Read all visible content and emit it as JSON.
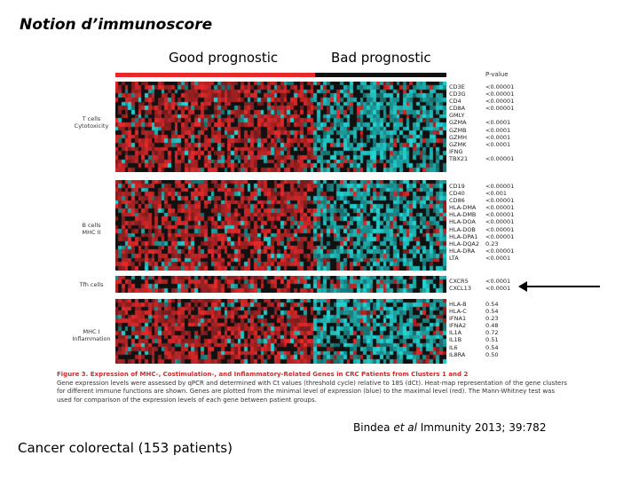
{
  "slide": {
    "title": "Notion d’immunoscore",
    "header_good": "Good prognostic",
    "header_bad": "Bad prognostic",
    "pvalue_header": "P-value",
    "citation_pre": "Bindea ",
    "citation_em": "et al",
    "citation_post": " Immunity 2013; 39:782",
    "bottom_text": "Cancer colorectal (153 patients)"
  },
  "heatmap": {
    "colors": {
      "red": "#e8292b",
      "cyan": "#22d6d6",
      "black": "#111111",
      "group_good": "#e8292b",
      "group_bad": "#111111"
    },
    "blocks": [
      {
        "label": "T cells\nCytotoxicity",
        "genes": [
          "CD3E",
          "CD3G",
          "CD4",
          "CD8A",
          "GMLY",
          "GZMA",
          "GZMB",
          "GZMH",
          "GZMK",
          "IFNG",
          "TBX21"
        ],
        "pvalues": [
          "<0.00001",
          "<0.00001",
          "<0.00001",
          "<0.00001",
          "",
          "<0.0001",
          "<0.0001",
          "<0.0001",
          "<0.0001",
          "",
          "<0.00001"
        ]
      },
      {
        "label": "B cells\nMHC II",
        "genes": [
          "CD19",
          "CD40",
          "CD86",
          "HLA-DMA",
          "HLA-DMB",
          "HLA-DOA",
          "HLA-DOB",
          "HLA-DPA1",
          "HLA-DQA2",
          "HLA-DRA",
          "LTA"
        ],
        "pvalues": [
          "<0.00001",
          "<0.001",
          "<0.00001",
          "<0.00001",
          "<0.00001",
          "<0.00001",
          "<0.00001",
          "<0.00001",
          "0.23",
          "<0.00001",
          "<0.0001"
        ]
      },
      {
        "label": "Tfh cells",
        "genes": [
          "CXCR5",
          "CXCL13"
        ],
        "pvalues": [
          "<0.0001",
          "<0.0001"
        ]
      },
      {
        "label": "MHC I\nInflammation",
        "genes": [
          "HLA-B",
          "HLA-C",
          "IFNA1",
          "IFNA2",
          "IL1A",
          "IL1B",
          "IL6",
          "IL8RA"
        ],
        "pvalues": [
          "0.54",
          "0.54",
          "0.23",
          "0.48",
          "0.72",
          "0.51",
          "0.54",
          "0.50"
        ]
      }
    ]
  },
  "caption": {
    "title": "Figure 3. Expression of MHC-, Costimulation-, and Inflammatory-Related Genes in CRC Patients from Clusters 1 and 2",
    "body": "Gene expression levels were assessed by qPCR and determined with Ct values (threshold cycle) relative to 18S (dCt). Heat-map representation of the gene clusters for different immune functions are shown. Genes are plotted from the minimal level of expression (blue) to the maximal level (red). The Mann-Whitney test was used for comparison of the expression levels of each gene between patient groups."
  }
}
